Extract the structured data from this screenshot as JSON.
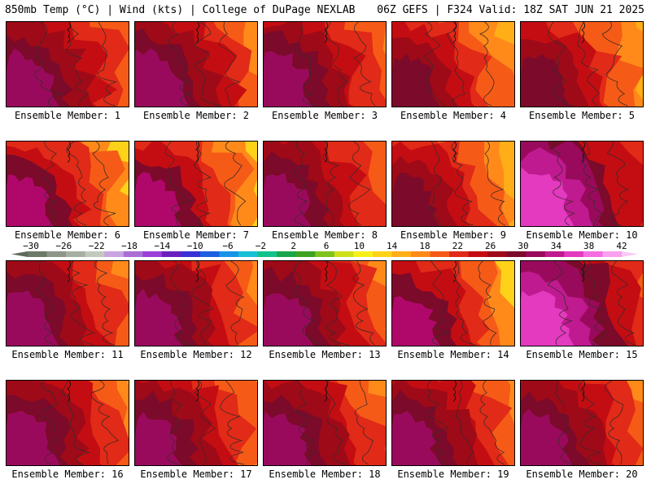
{
  "header": {
    "left": "850mb Temp (°C) | Wind (kts) | College of DuPage NEXLAB",
    "right": "06Z GEFS | F324 Valid: 18Z SAT JUN 21 2025"
  },
  "panels": [
    {
      "label": "Ensemble Member: 1",
      "heat": 0.8,
      "grad": "mw"
    },
    {
      "label": "Ensemble Member: 2",
      "heat": 0.82,
      "grad": "mw"
    },
    {
      "label": "Ensemble Member: 3",
      "heat": 0.8,
      "grad": "mw"
    },
    {
      "label": "Ensemble Member: 4",
      "heat": 0.62,
      "grad": "wtoyellow"
    },
    {
      "label": "Ensemble Member: 5",
      "heat": 0.66,
      "grad": "wtoyellow"
    },
    {
      "label": "Ensemble Member: 6",
      "heat": 0.55,
      "grad": "wtogreen"
    },
    {
      "label": "Ensemble Member: 7",
      "heat": 0.55,
      "grad": "wtogreen"
    },
    {
      "label": "Ensemble Member: 8",
      "heat": 0.68,
      "grad": "mw"
    },
    {
      "label": "Ensemble Member: 9",
      "heat": 0.58,
      "grad": "wtoyellow"
    },
    {
      "label": "Ensemble Member: 10",
      "heat": 0.9,
      "grad": "hot"
    },
    {
      "label": "Ensemble Member: 11",
      "heat": 0.72,
      "grad": "mw"
    },
    {
      "label": "Ensemble Member: 12",
      "heat": 0.72,
      "grad": "mw"
    },
    {
      "label": "Ensemble Member: 13",
      "heat": 0.8,
      "grad": "mw"
    },
    {
      "label": "Ensemble Member: 14",
      "heat": 0.6,
      "grad": "wtogreen"
    },
    {
      "label": "Ensemble Member: 15",
      "heat": 0.85,
      "grad": "hot"
    },
    {
      "label": "Ensemble Member: 16",
      "heat": 0.78,
      "grad": "mw"
    },
    {
      "label": "Ensemble Member: 17",
      "heat": 0.62,
      "grad": "mw"
    },
    {
      "label": "Ensemble Member: 18",
      "heat": 0.62,
      "grad": "mw"
    },
    {
      "label": "Ensemble Member: 19",
      "heat": 0.62,
      "grad": "mw"
    },
    {
      "label": "Ensemble Member: 20",
      "heat": 0.72,
      "grad": "mw"
    }
  ],
  "colorbar": {
    "ticks": [
      "−30",
      "−26",
      "−22",
      "−18",
      "−14",
      "−10",
      "−6",
      "−2",
      "2",
      "6",
      "10",
      "14",
      "18",
      "22",
      "26",
      "30",
      "34",
      "38",
      "42"
    ],
    "colors": [
      "#6e7a68",
      "#8e968a",
      "#a6b0a2",
      "#c4c9bf",
      "#c8a4e0",
      "#a96fd6",
      "#9b3fd8",
      "#6a21c0",
      "#3b2fd6",
      "#1d5fe0",
      "#1694e8",
      "#17c0d6",
      "#12c28a",
      "#1aa64a",
      "#3ea320",
      "#7ec31c",
      "#cde01a",
      "#f6f01a",
      "#ffd21a",
      "#ffae18",
      "#ff8a1a",
      "#f55b16",
      "#e12a17",
      "#c40d12",
      "#9e0a18",
      "#7c0a2a",
      "#9a0a5c",
      "#c01a90",
      "#e33ac0",
      "#f56de0",
      "#f9a0ee"
    ]
  }
}
